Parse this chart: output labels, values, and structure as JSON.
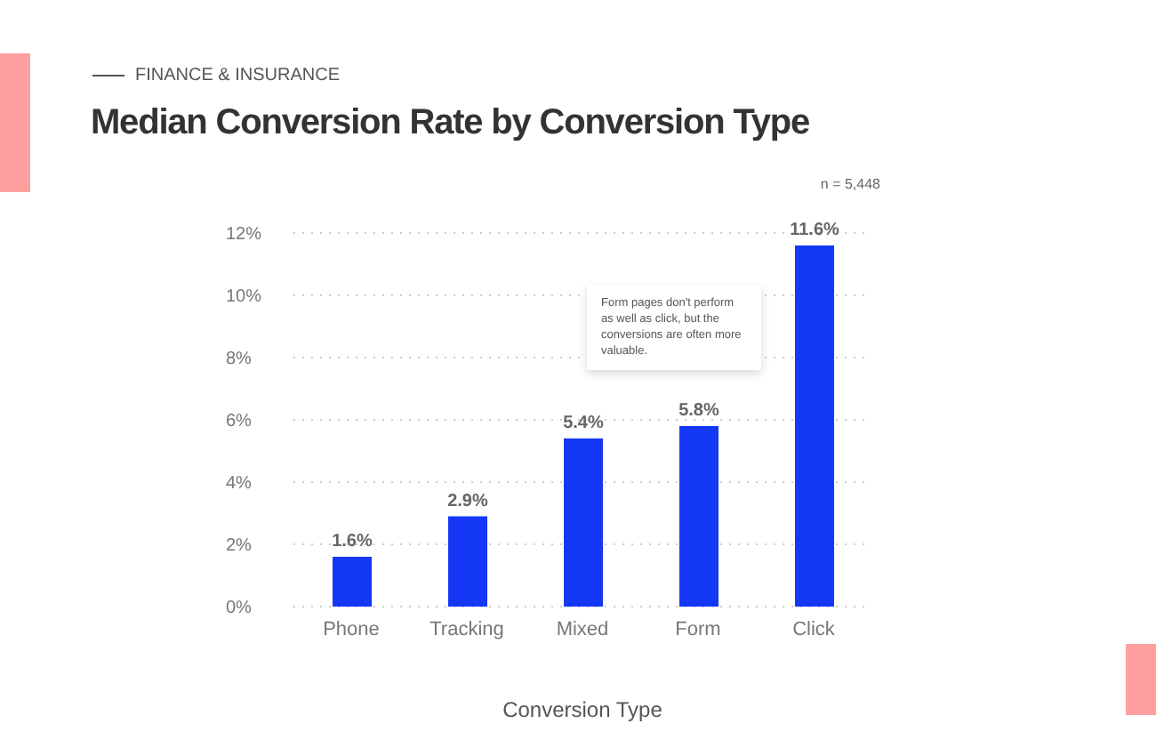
{
  "chart_data": {
    "type": "bar",
    "subtitle": "FINANCE & INSURANCE",
    "title": "Median Conversion Rate by Conversion Type",
    "xlabel": "Conversion Type",
    "categories": [
      "Phone",
      "Tracking",
      "Mixed",
      "Form",
      "Click"
    ],
    "values": [
      1.6,
      2.9,
      5.4,
      5.8,
      11.6
    ],
    "value_labels": [
      "1.6%",
      "2.9%",
      "5.4%",
      "5.8%",
      "11.6%"
    ],
    "color": "#1438f5",
    "ylim": [
      0,
      12
    ],
    "yticks": [
      {
        "value": 0,
        "label": "0%"
      },
      {
        "value": 2,
        "label": "2%"
      },
      {
        "value": 4,
        "label": "4%"
      },
      {
        "value": 6,
        "label": "6%"
      },
      {
        "value": 8,
        "label": "8%"
      },
      {
        "value": 10,
        "label": "10%"
      },
      {
        "value": 12,
        "label": "12%"
      }
    ],
    "grid": "y",
    "annotations": [
      "n = 5,448",
      "Form pages don't perform as well as click, but the conversions are often more valuable."
    ]
  }
}
